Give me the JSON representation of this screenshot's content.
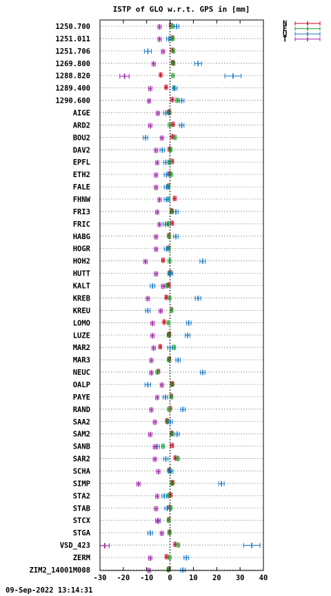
{
  "chart_data": {
    "type": "scatter",
    "title": "ISTP of GLO w.r.t. GPS in [mm]",
    "xlabel": "",
    "ylabel": "",
    "xlim": [
      -30,
      40
    ],
    "xticks": [
      "-30",
      "-20",
      "-10",
      "0",
      "10",
      "20",
      "30",
      "40"
    ],
    "grid": "dotted horizontal per row",
    "legend_position": "top-right",
    "categories": [
      "1250.700",
      "1251.011",
      "1251.706",
      "1269.800",
      "1288.820",
      "1289.400",
      "1290.600",
      "AIGE",
      "ARD2",
      "BOU2",
      "DAV2",
      "EPFL",
      "ETH2",
      "FALE",
      "FHNW",
      "FRI3",
      "FRIC",
      "HABG",
      "HOGR",
      "HOH2",
      "HUTT",
      "KALT",
      "KREB",
      "KREU",
      "LOMO",
      "LUZE",
      "MAR2",
      "MAR3",
      "NEUC",
      "OALP",
      "PAYE",
      "RAND",
      "SAA2",
      "SAM2",
      "SANB",
      "SAR2",
      "SCHA",
      "SIMP",
      "STA2",
      "STAB",
      "STCX",
      "STGA",
      "VSD_423",
      "ZERM",
      "ZIM2_14001M008"
    ],
    "series": [
      {
        "name": "N",
        "color": "#c8001e",
        "values": [
          0.3,
          1.0,
          1.0,
          1.2,
          -4.0,
          -1.7,
          1.0,
          -0.5,
          1.3,
          1.0,
          -0.2,
          0.9,
          -0.3,
          -0.6,
          2.0,
          0.6,
          0.9,
          -0.5,
          -0.5,
          -3.0,
          0.1,
          -0.5,
          -1.6,
          0.6,
          -2.5,
          -0.3,
          -4.2,
          -0.3,
          -5.0,
          1.0,
          0.5,
          0.1,
          -1.3,
          0.6,
          0.9,
          2.3,
          -0.4,
          1.1,
          0.3,
          -0.2,
          -0.5,
          -0.2,
          2.2,
          -1.5,
          -0.5
        ],
        "errors": [
          0.6,
          0.6,
          0.6,
          0.6,
          0.6,
          0.6,
          0.6,
          0.6,
          0.6,
          0.6,
          0.6,
          0.6,
          0.6,
          0.6,
          0.6,
          0.6,
          0.6,
          0.6,
          0.6,
          0.6,
          0.6,
          0.6,
          0.6,
          0.6,
          0.6,
          0.6,
          0.6,
          0.6,
          0.6,
          0.6,
          0.6,
          0.6,
          0.6,
          0.6,
          0.6,
          0.6,
          0.6,
          0.6,
          0.6,
          0.6,
          0.6,
          0.6,
          0.6,
          0.6,
          0.6
        ]
      },
      {
        "name": "E",
        "color": "#14a028",
        "values": [
          1.0,
          1.1,
          1.5,
          1.5,
          1.2,
          1.6,
          3.0,
          -0.2,
          -0.2,
          2.1,
          0.2,
          -0.3,
          0.5,
          -0.7,
          -0.6,
          0.8,
          -0.7,
          -0.4,
          -0.6,
          -0.2,
          -0.3,
          -1.4,
          -0.2,
          0.6,
          -0.6,
          -0.6,
          1.8,
          -0.5,
          -5.5,
          0.7,
          0.6,
          -0.5,
          -1.1,
          0.8,
          -3.0,
          3.4,
          0.0,
          0.8,
          -0.7,
          0.3,
          -0.6,
          -0.3,
          3.5,
          -0.1,
          -0.7
        ],
        "errors": [
          0.6,
          0.6,
          0.6,
          0.6,
          0.6,
          0.6,
          0.6,
          0.6,
          0.6,
          0.6,
          0.6,
          0.6,
          0.6,
          0.6,
          0.6,
          0.6,
          0.6,
          0.6,
          0.6,
          0.6,
          0.6,
          0.6,
          0.6,
          0.6,
          0.6,
          0.6,
          0.6,
          0.6,
          0.6,
          0.6,
          0.6,
          0.6,
          0.6,
          0.6,
          0.6,
          0.6,
          0.6,
          0.6,
          0.6,
          0.6,
          0.6,
          0.6,
          0.6,
          0.6,
          0.6
        ]
      },
      {
        "name": "U",
        "color": "#1478c8",
        "values": [
          2.8,
          -0.5,
          -9.5,
          12.0,
          27.0,
          2.0,
          5.0,
          -1.8,
          5.0,
          -10.5,
          -3.3,
          -1.8,
          -1.5,
          -1.5,
          -1.5,
          2.5,
          -2.0,
          2.5,
          -1.5,
          14.0,
          0.2,
          -7.5,
          12.0,
          -9.5,
          8.0,
          7.5,
          0.0,
          3.5,
          14.0,
          -9.5,
          -2.0,
          5.5,
          0.1,
          3.0,
          -5.5,
          -1.8,
          0.3,
          22.0,
          -2.5,
          -1.2,
          -5.2,
          -8.5,
          35.0,
          7.0,
          5.5
        ],
        "errors": [
          1.0,
          1.0,
          1.5,
          1.5,
          3.5,
          1.0,
          1.0,
          1.0,
          1.0,
          1.0,
          1.0,
          1.0,
          1.0,
          1.0,
          1.0,
          1.0,
          1.0,
          1.0,
          1.0,
          1.2,
          1.0,
          1.0,
          1.2,
          1.0,
          1.0,
          1.0,
          1.0,
          1.0,
          1.0,
          1.2,
          1.0,
          1.0,
          1.0,
          1.0,
          1.0,
          1.0,
          1.0,
          1.2,
          1.0,
          1.0,
          1.0,
          1.0,
          3.5,
          1.0,
          1.0
        ]
      },
      {
        "name": "T",
        "color": "#a01eaa",
        "values": [
          -4.5,
          -4.5,
          -3.0,
          -7.0,
          -19.5,
          -8.5,
          -9.0,
          -5.2,
          -8.5,
          -3.5,
          -6.0,
          -5.5,
          -6.0,
          -6.0,
          -4.5,
          -5.5,
          -4.5,
          -6.0,
          -6.0,
          -10.5,
          -6.0,
          -3.0,
          -9.5,
          -4.0,
          -7.5,
          -7.5,
          -7.0,
          -8.0,
          -8.0,
          -3.5,
          -5.5,
          -8.0,
          -6.5,
          -8.5,
          -6.5,
          -6.5,
          -5.0,
          -13.5,
          -5.5,
          -6.0,
          -5.0,
          -3.5,
          -28.0,
          -8.5,
          -9.0
        ],
        "errors": [
          0.7,
          0.7,
          0.7,
          0.7,
          2.0,
          0.7,
          0.7,
          0.7,
          0.7,
          0.7,
          0.7,
          0.7,
          0.7,
          0.7,
          0.7,
          0.7,
          0.7,
          0.7,
          0.7,
          0.7,
          0.7,
          0.7,
          0.7,
          0.7,
          0.7,
          0.7,
          0.7,
          0.7,
          0.7,
          0.7,
          0.7,
          0.7,
          0.7,
          0.7,
          0.7,
          0.7,
          0.7,
          0.7,
          0.7,
          0.7,
          0.7,
          0.7,
          2.0,
          0.7,
          0.7
        ]
      }
    ]
  },
  "timestamp": "09-Sep-2022 13:14:31"
}
